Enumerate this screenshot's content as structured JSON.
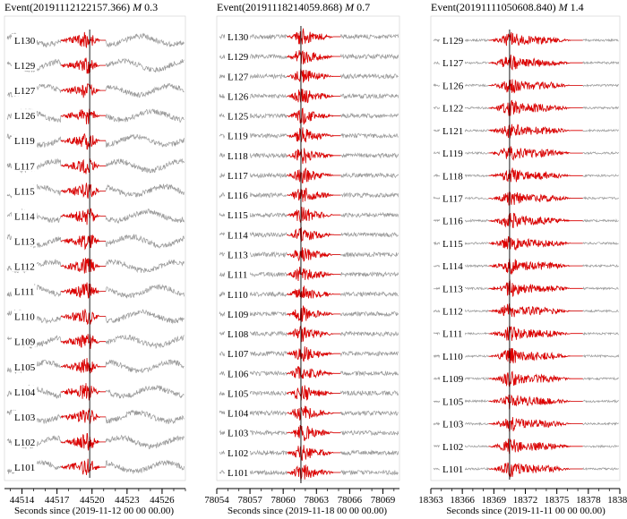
{
  "chart_data": [
    {
      "type": "line",
      "title_event": "Event(20191112122157.366)",
      "title_mag_label": "M",
      "title_mag_value": "0.3",
      "xlabel": "Seconds since (2019-11-12 00 00 00.00)",
      "xlim": [
        44512.5,
        44528.0
      ],
      "xticks": [
        44514,
        44517,
        44520,
        44523,
        44526
      ],
      "xtick_labels": [
        "44514",
        "44517",
        "44520",
        "44523",
        "44526"
      ],
      "pick_time": 44519.8,
      "signal_window": [
        44517.3,
        44521.2
      ],
      "noise_style": "large",
      "stations": [
        "L130",
        "L129",
        "L127",
        "L126",
        "L119",
        "L117",
        "L115",
        "L114",
        "L113",
        "L112",
        "L111",
        "L110",
        "L109",
        "L105",
        "L104",
        "L103",
        "L102",
        "L101"
      ]
    },
    {
      "type": "line",
      "title_event": "Event(20191118214059.868)",
      "title_mag_label": "M",
      "title_mag_value": "0.7",
      "xlabel": "Seconds since (2019-11-18 00 00 00.00)",
      "xlim": [
        78054,
        78070.5
      ],
      "xticks": [
        78054,
        78057,
        78060,
        78063,
        78066,
        78069
      ],
      "xtick_labels": [
        "78054",
        "78057",
        "78060",
        "78063",
        "78066",
        "78069"
      ],
      "pick_time": 78061.6,
      "signal_window": [
        78060.3,
        78065.2
      ],
      "noise_style": "small",
      "stations": [
        "L130",
        "L129",
        "L127",
        "L126",
        "L125",
        "L119",
        "L118",
        "L117",
        "L116",
        "L115",
        "L114",
        "L113",
        "L111",
        "L110",
        "L109",
        "L108",
        "L107",
        "L106",
        "L105",
        "L104",
        "L103",
        "L102",
        "L101"
      ]
    },
    {
      "type": "line",
      "title_event": "Event(20191111050608.840)",
      "title_mag_label": "M",
      "title_mag_value": "1.4",
      "xlabel": "Seconds since (2019-11-11 00 00 00.00)",
      "xlim": [
        18363,
        18381
      ],
      "xticks": [
        18363,
        18366,
        18369,
        18372,
        18375,
        18378,
        18381
      ],
      "xtick_labels": [
        "18363",
        "18366",
        "18369",
        "18372",
        "18375",
        "18378",
        "18381"
      ],
      "pick_time": 18370.5,
      "signal_window": [
        18368.5,
        18377.5
      ],
      "noise_style": "tiny",
      "stations": [
        "L129",
        "L127",
        "L126",
        "L122",
        "L121",
        "L119",
        "L118",
        "L117",
        "L116",
        "L115",
        "L114",
        "L113",
        "L112",
        "L111",
        "L110",
        "L109",
        "L105",
        "L103",
        "L102",
        "L101"
      ]
    }
  ],
  "colors": {
    "signal": "#e00000",
    "noise": "#9a9a9a",
    "axis": "#000000",
    "frame": "#cfcfcf"
  }
}
